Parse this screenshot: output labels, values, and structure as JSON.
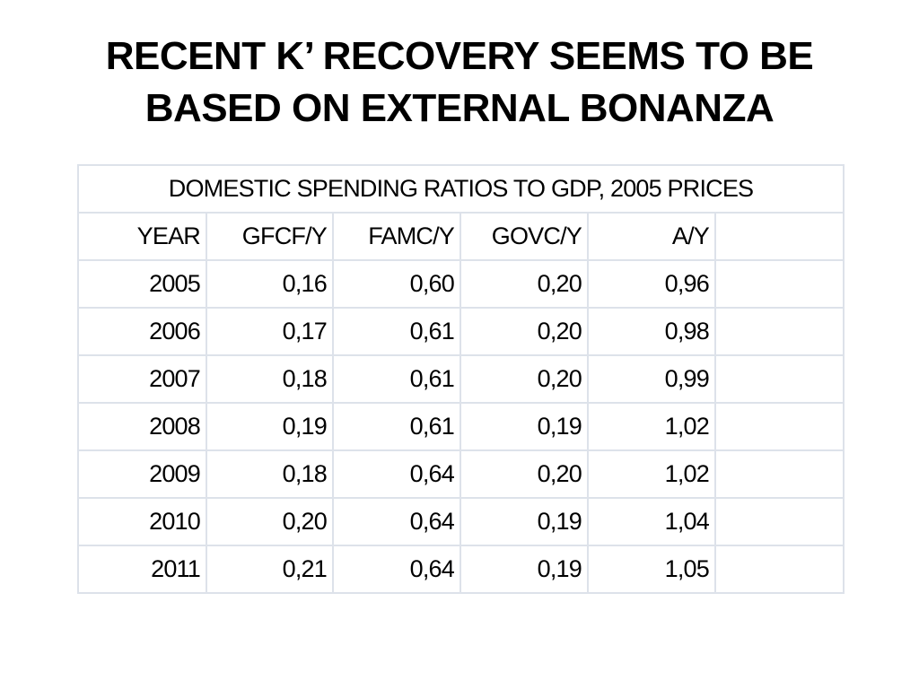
{
  "slide": {
    "title_line1": "RECENT K’ RECOVERY SEEMS TO BE",
    "title_line2": "BASED ON EXTERNAL BONANZA"
  },
  "table": {
    "caption": "DOMESTIC SPENDING RATIOS TO GDP, 2005 PRICES",
    "headers": [
      "YEAR",
      "GFCF/Y",
      "FAMC/Y",
      "GOVC/Y",
      "A/Y",
      ""
    ],
    "rows": [
      [
        "2005",
        "0,16",
        "0,60",
        "0,20",
        "0,96",
        ""
      ],
      [
        "2006",
        "0,17",
        "0,61",
        "0,20",
        "0,98",
        ""
      ],
      [
        "2007",
        "0,18",
        "0,61",
        "0,20",
        "0,99",
        ""
      ],
      [
        "2008",
        "0,19",
        "0,61",
        "0,19",
        "1,02",
        ""
      ],
      [
        "2009",
        "0,18",
        "0,64",
        "0,20",
        "1,02",
        ""
      ],
      [
        "2010",
        "0,20",
        "0,64",
        "0,19",
        "1,04",
        ""
      ],
      [
        "2011",
        "0,21",
        "0,64",
        "0,19",
        "1,05",
        ""
      ]
    ]
  }
}
